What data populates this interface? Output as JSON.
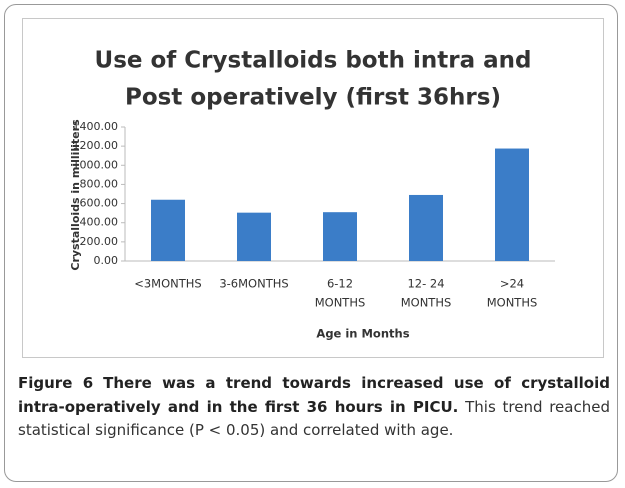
{
  "chart_data": {
    "type": "bar",
    "title": [
      "Use of Crystalloids both intra and",
      "Post operatively (first 36hrs)"
    ],
    "categories": [
      [
        "<3MONTHS"
      ],
      [
        "3-6MONTHS"
      ],
      [
        "6-12",
        "MONTHS"
      ],
      [
        "12- 24",
        "MONTHS"
      ],
      [
        ">24",
        "MONTHS"
      ]
    ],
    "values": [
      640,
      505,
      510,
      690,
      1175
    ],
    "color": "#3b7dc8",
    "xlabel": "Age in Months",
    "ylabel": "Crystalloids in milliliters",
    "ylim": [
      0,
      1400
    ],
    "yticks": [
      {
        "value": 0,
        "label": "0.00"
      },
      {
        "value": 200,
        "label": "200.00"
      },
      {
        "value": 400,
        "label": "400.00"
      },
      {
        "value": 600,
        "label": "600.00"
      },
      {
        "value": 800,
        "label": "800.00"
      },
      {
        "value": 1000,
        "label": "1000.00"
      },
      {
        "value": 1200,
        "label": "1200.00"
      },
      {
        "value": 1400,
        "label": "1400.00"
      }
    ],
    "grid": false
  },
  "caption": {
    "label": "Figure 6",
    "title": "There was a trend towards increased use of crystalloid intra-operatively and in the first 36 hours in PICU.",
    "text": "This trend reached statistical significance (P < 0.05) and correlated with age."
  }
}
